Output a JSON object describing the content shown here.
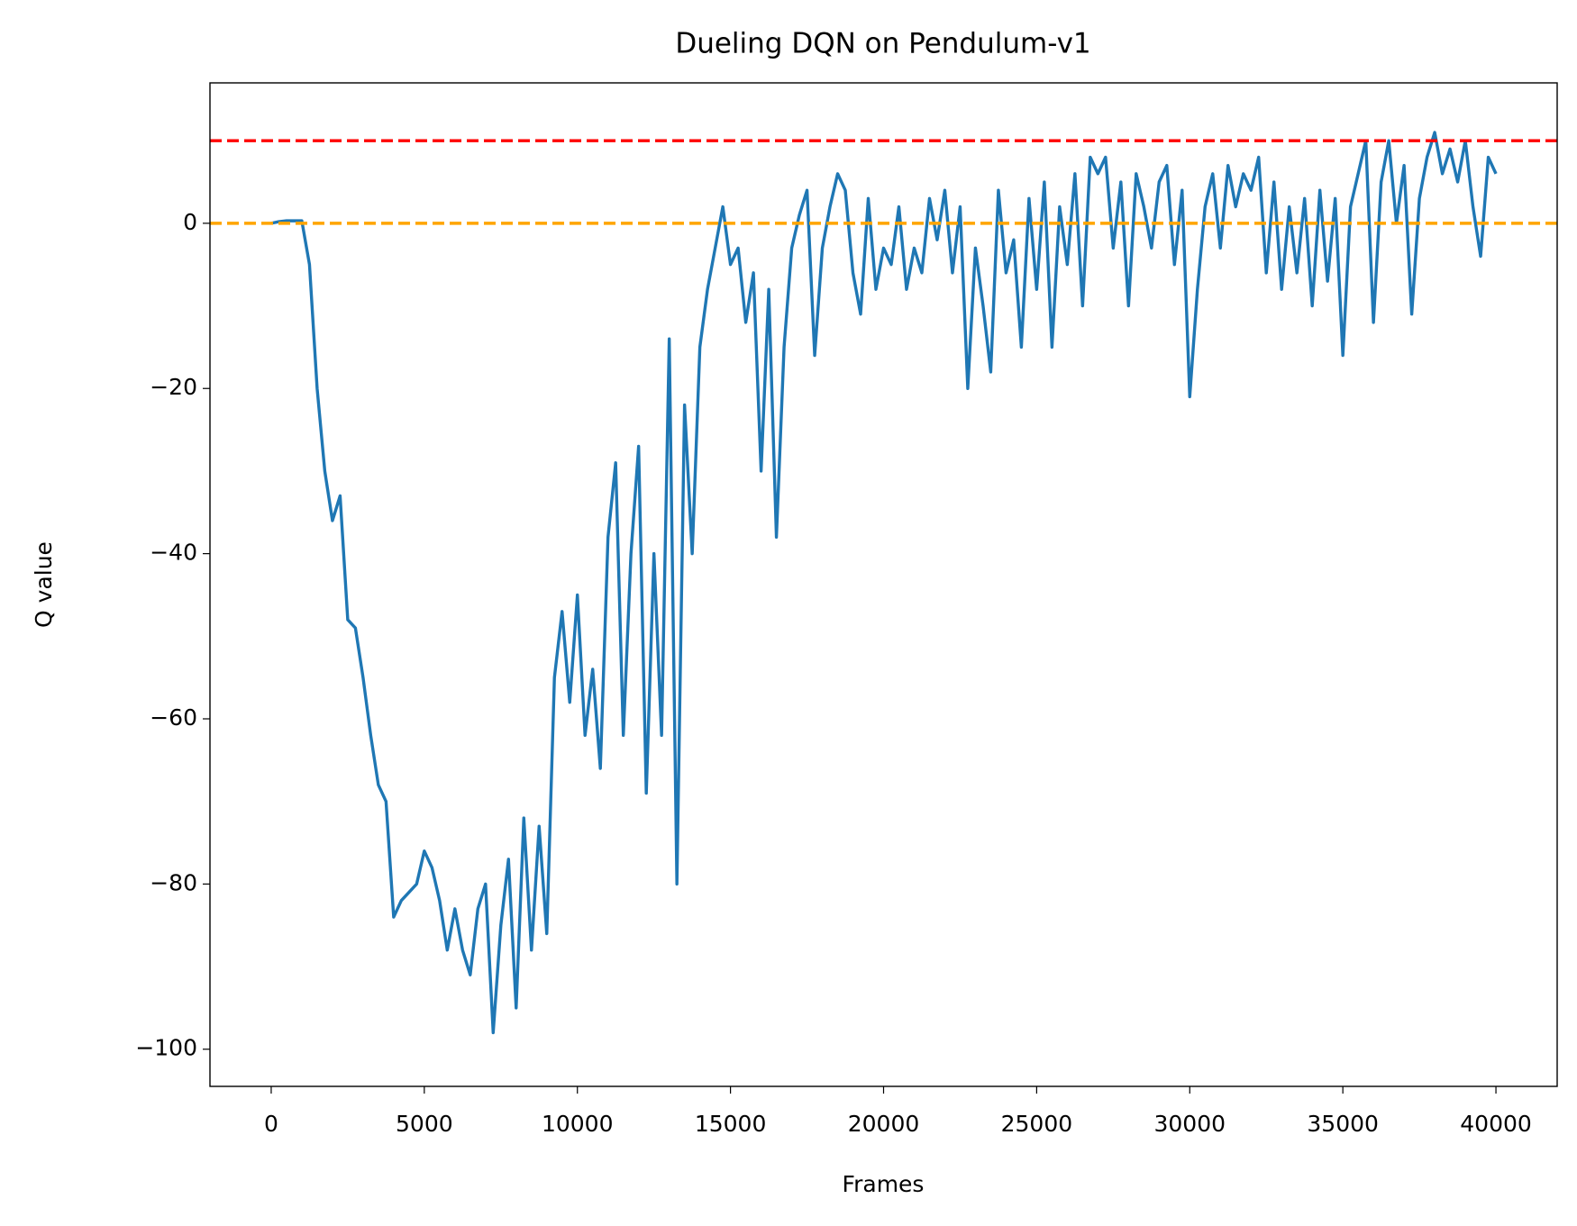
{
  "chart_data": {
    "type": "line",
    "title": "Dueling DQN on Pendulum-v1",
    "xlabel": "Frames",
    "ylabel": "Q value",
    "x": [
      0,
      250,
      500,
      750,
      1000,
      1250,
      1500,
      1750,
      2000,
      2250,
      2500,
      2750,
      3000,
      3250,
      3500,
      3750,
      4000,
      4250,
      4500,
      4750,
      5000,
      5250,
      5500,
      5750,
      6000,
      6250,
      6500,
      6750,
      7000,
      7250,
      7500,
      7750,
      8000,
      8250,
      8500,
      8750,
      9000,
      9250,
      9500,
      9750,
      10000,
      10250,
      10500,
      10750,
      11000,
      11250,
      11500,
      11750,
      12000,
      12250,
      12500,
      12750,
      13000,
      13250,
      13500,
      13750,
      14000,
      14250,
      14500,
      14750,
      15000,
      15250,
      15500,
      15750,
      16000,
      16250,
      16500,
      16750,
      17000,
      17250,
      17500,
      17750,
      18000,
      18250,
      18500,
      18750,
      19000,
      19250,
      19500,
      19750,
      20000,
      20250,
      20500,
      20750,
      21000,
      21250,
      21500,
      21750,
      22000,
      22250,
      22500,
      22750,
      23000,
      23250,
      23500,
      23750,
      24000,
      24250,
      24500,
      24750,
      25000,
      25250,
      25500,
      25750,
      26000,
      26250,
      26500,
      26750,
      27000,
      27250,
      27500,
      27750,
      28000,
      28250,
      28500,
      28750,
      29000,
      29250,
      29500,
      29750,
      30000,
      30250,
      30500,
      30750,
      31000,
      31250,
      31500,
      31750,
      32000,
      32250,
      32500,
      32750,
      33000,
      33250,
      33500,
      33750,
      34000,
      34250,
      34500,
      34750,
      35000,
      35250,
      35500,
      35750,
      36000,
      36250,
      36500,
      36750,
      37000,
      37250,
      37500,
      37750,
      38000,
      38250,
      38500,
      38750,
      39000,
      39250,
      39500,
      39750,
      40000
    ],
    "series": [
      {
        "name": "Q value",
        "color": "#1f77b4",
        "values": [
          0,
          0.2,
          0.3,
          0.3,
          0.3,
          -5,
          -20,
          -30,
          -36,
          -33,
          -48,
          -49,
          -55,
          -62,
          -68,
          -70,
          -84,
          -82,
          -81,
          -80,
          -76,
          -78,
          -82,
          -88,
          -83,
          -88,
          -91,
          -83,
          -80,
          -98,
          -85,
          -77,
          -95,
          -72,
          -88,
          -73,
          -86,
          -55,
          -47,
          -58,
          -45,
          -62,
          -54,
          -66,
          -38,
          -29,
          -62,
          -40,
          -27,
          -69,
          -40,
          -62,
          -14,
          -80,
          -22,
          -40,
          -15,
          -8,
          -3,
          2,
          -5,
          -3,
          -12,
          -6,
          -30,
          -8,
          -38,
          -15,
          -3,
          1,
          4,
          -16,
          -3,
          2,
          6,
          4,
          -6,
          -11,
          3,
          -8,
          -3,
          -5,
          2,
          -8,
          -3,
          -6,
          3,
          -2,
          4,
          -6,
          2,
          -20,
          -3,
          -10,
          -18,
          4,
          -6,
          -2,
          -15,
          3,
          -8,
          5,
          -15,
          2,
          -5,
          6,
          -10,
          8,
          6,
          8,
          -3,
          5,
          -10,
          6,
          2,
          -3,
          5,
          7,
          -5,
          4,
          -21,
          -8,
          2,
          6,
          -3,
          7,
          2,
          6,
          4,
          8,
          -6,
          5,
          -8,
          2,
          -6,
          3,
          -10,
          4,
          -7,
          3,
          -16,
          2,
          6,
          10,
          -12,
          5,
          10,
          0,
          7,
          -11,
          3,
          8,
          11,
          6,
          9,
          5,
          10,
          2,
          -4,
          8,
          6
        ]
      }
    ],
    "hlines": [
      {
        "value": 10,
        "color": "red"
      },
      {
        "value": 0,
        "color": "orange"
      }
    ],
    "xlim": [
      -2000,
      42000
    ],
    "ylim": [
      -104.5,
      17
    ],
    "xticks": [
      0,
      5000,
      10000,
      15000,
      20000,
      25000,
      30000,
      35000,
      40000
    ],
    "yticks": [
      {
        "value": -100,
        "label": "−100"
      },
      {
        "value": -80,
        "label": "−80"
      },
      {
        "value": -60,
        "label": "−60"
      },
      {
        "value": -40,
        "label": "−40"
      },
      {
        "value": -20,
        "label": "−20"
      },
      0
    ]
  }
}
